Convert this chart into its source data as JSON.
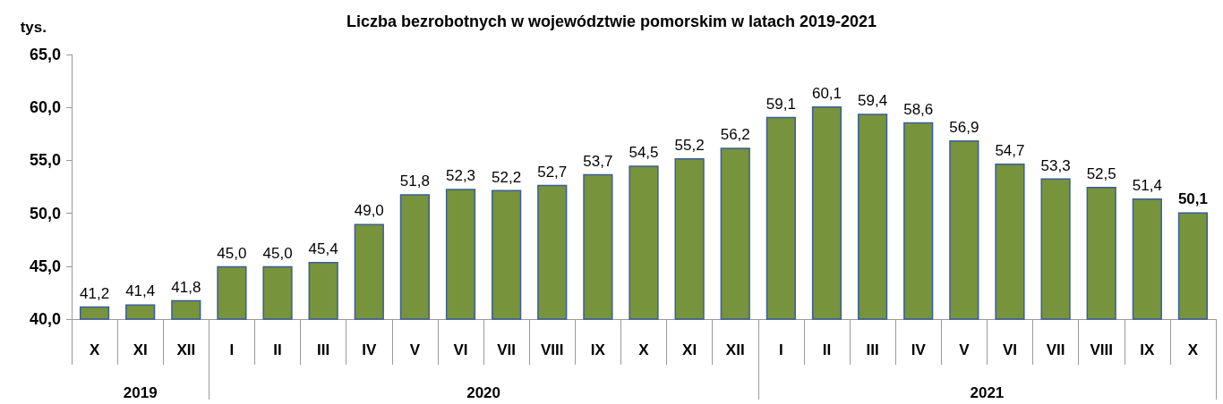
{
  "chart_data": {
    "type": "bar",
    "title": "Liczba bezrobotnych w województwie pomorskim w latach 2019-2021",
    "ylabel": "tys.",
    "categories": [
      "X",
      "XI",
      "XII",
      "I",
      "II",
      "III",
      "IV",
      "V",
      "VI",
      "VII",
      "VIII",
      "IX",
      "X",
      "XI",
      "XII",
      "I",
      "II",
      "III",
      "IV",
      "V",
      "VI",
      "VII",
      "VIII",
      "IX",
      "X"
    ],
    "values": [
      41.2,
      41.4,
      41.8,
      45.0,
      45.0,
      45.4,
      49.0,
      51.8,
      52.3,
      52.2,
      52.7,
      53.7,
      54.5,
      55.2,
      56.2,
      59.1,
      60.1,
      59.4,
      58.6,
      56.9,
      54.7,
      53.3,
      52.5,
      51.4,
      50.1
    ],
    "value_labels": [
      "41,2",
      "41,4",
      "41,8",
      "45,0",
      "45,0",
      "45,4",
      "49,0",
      "51,8",
      "52,3",
      "52,2",
      "52,7",
      "53,7",
      "54,5",
      "55,2",
      "56,2",
      "59,1",
      "60,1",
      "59,4",
      "58,6",
      "56,9",
      "54,7",
      "53,3",
      "52,5",
      "51,4",
      "50,1"
    ],
    "color": "#77933c",
    "ylim": [
      40,
      65
    ],
    "yticks": [
      {
        "value": 40,
        "label": "40,0"
      },
      {
        "value": 45,
        "label": "45,0"
      },
      {
        "value": 50,
        "label": "50,0"
      },
      {
        "value": 55,
        "label": "55,0"
      },
      {
        "value": 60,
        "label": "60,0"
      },
      {
        "value": 65,
        "label": "65,0"
      }
    ],
    "annotations": [
      "2019",
      "2020",
      "2021"
    ],
    "grid": false
  }
}
